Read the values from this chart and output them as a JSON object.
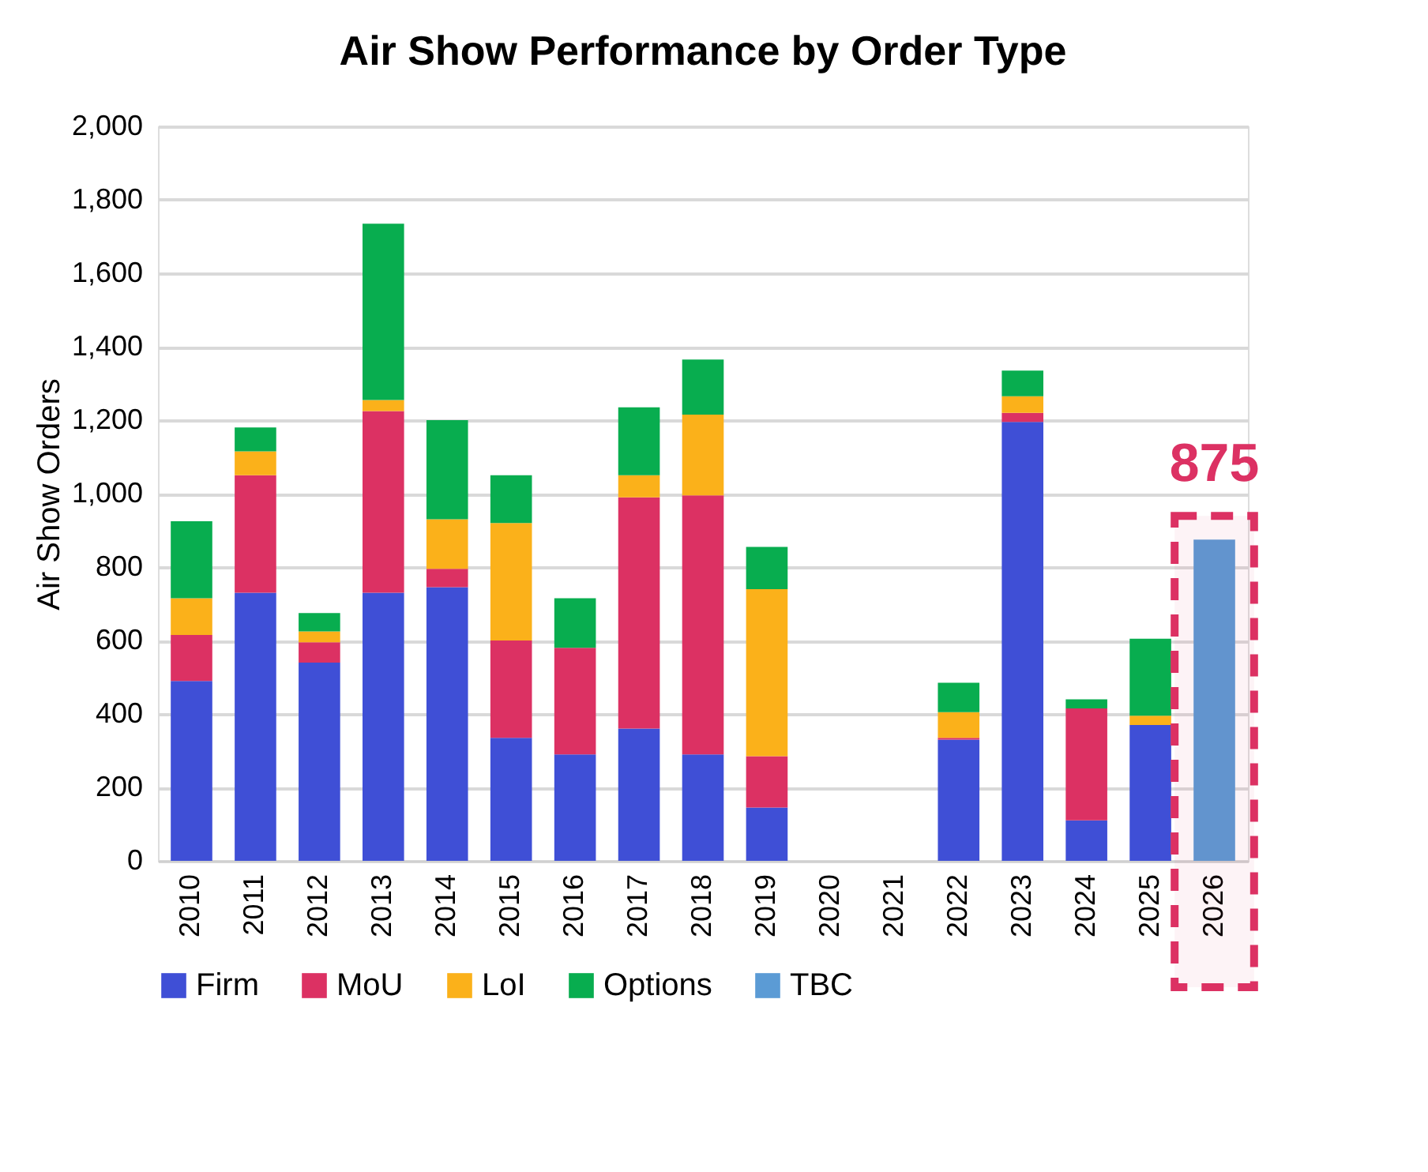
{
  "chart_data": {
    "type": "bar",
    "title": "Air Show Performance by Order Type",
    "ylabel": "Air Show Orders",
    "stacked": true,
    "categories": [
      "2010",
      "2011",
      "2012",
      "2013",
      "2014",
      "2015",
      "2016",
      "2017",
      "2018",
      "2019",
      "2020",
      "2021",
      "2022",
      "2023",
      "2024",
      "2025",
      "2026"
    ],
    "series": [
      {
        "name": "Firm",
        "color": "#3f4fd6",
        "values": [
          490,
          730,
          540,
          730,
          745,
          335,
          290,
          360,
          290,
          145,
          null,
          null,
          330,
          1195,
          110,
          370,
          null
        ]
      },
      {
        "name": "MoU",
        "color": "#dc3163",
        "values": [
          125,
          320,
          55,
          495,
          50,
          265,
          290,
          630,
          705,
          140,
          null,
          null,
          5,
          25,
          305,
          null,
          null
        ]
      },
      {
        "name": "LoI",
        "color": "#fbb11a",
        "values": [
          100,
          65,
          30,
          30,
          135,
          320,
          null,
          60,
          220,
          455,
          null,
          null,
          70,
          45,
          null,
          25,
          null
        ]
      },
      {
        "name": "Options",
        "color": "#08ad4f",
        "values": [
          210,
          65,
          50,
          480,
          270,
          130,
          135,
          185,
          150,
          115,
          null,
          null,
          80,
          70,
          25,
          210,
          null
        ]
      },
      {
        "name": "TBC",
        "color": "#5b9bd5",
        "values": [
          null,
          null,
          null,
          null,
          null,
          null,
          null,
          null,
          null,
          null,
          null,
          null,
          null,
          null,
          null,
          null,
          875
        ],
        "value_labels": [
          null,
          null,
          null,
          null,
          null,
          null,
          null,
          null,
          null,
          null,
          null,
          null,
          null,
          null,
          null,
          null,
          "875"
        ]
      }
    ],
    "bands": [
      {
        "axis": "x",
        "from": "2026",
        "to": "2026",
        "color": "#dc3163"
      }
    ],
    "ylim": [
      0,
      2000
    ],
    "yticks": [
      0,
      200,
      400,
      600,
      800,
      {
        "value": 1000,
        "label": "1,000"
      },
      {
        "value": 1200,
        "label": "1,200"
      },
      {
        "value": 1400,
        "label": "1,400"
      },
      {
        "value": 1600,
        "label": "1,600"
      },
      {
        "value": 1800,
        "label": "1,800"
      },
      {
        "value": 2000,
        "label": "2,000"
      }
    ],
    "grid": "y",
    "legend": "bottom"
  }
}
